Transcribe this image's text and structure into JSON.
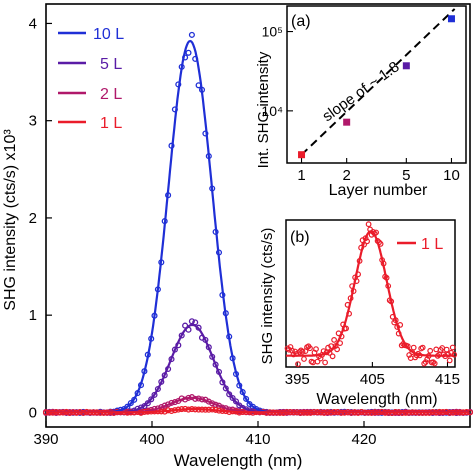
{
  "chart_data": [
    {
      "id": "main",
      "type": "line",
      "xlabel": "Wavelength (nm)",
      "ylabel": "SHG intensity (cts/s) x10³",
      "xlim": [
        390,
        430
      ],
      "ylim": [
        -0.15,
        4.2
      ],
      "xticks": [
        390,
        400,
        410,
        420
      ],
      "yticks": [
        0,
        1,
        2,
        3,
        4
      ],
      "legend_position": "top-left",
      "series": [
        {
          "name": "10 L",
          "color": "#1f2fd6",
          "peak": 3.82,
          "center": 403.6,
          "sigma": 2.05
        },
        {
          "name": "5 L",
          "color": "#5a1ca6",
          "peak": 0.9,
          "center": 403.8,
          "sigma": 2.0
        },
        {
          "name": "2 L",
          "color": "#b0186a",
          "peak": 0.15,
          "center": 403.8,
          "sigma": 2.0
        },
        {
          "name": "1 L",
          "color": "#ea1c2a",
          "peak": 0.035,
          "center": 404.0,
          "sigma": 2.0
        }
      ]
    },
    {
      "id": "inset_a",
      "type": "scatter",
      "panel_label": "(a)",
      "annotation": "slope of ~ 1.8",
      "xlabel": "Layer number",
      "ylabel": "Int. SHG intensity",
      "xscale": "log",
      "yscale": "log",
      "xticks": [
        1,
        2,
        5,
        10
      ],
      "ytick_labels": [
        "10⁴",
        "10⁵"
      ],
      "points": [
        {
          "x": 1,
          "y": 2800,
          "color": "#ea1c2a"
        },
        {
          "x": 2,
          "y": 7200,
          "color": "#b0186a"
        },
        {
          "x": 5,
          "y": 37000,
          "color": "#5a1ca6"
        },
        {
          "x": 10,
          "y": 145000,
          "color": "#1f2fd6"
        }
      ],
      "fit_line": "dashed"
    },
    {
      "id": "inset_b",
      "type": "line",
      "panel_label": "(b)",
      "legend": "1 L",
      "xlabel": "Wavelength (nm)",
      "ylabel": "SHG intensity (cts/s)",
      "xticks": [
        395,
        405,
        415
      ],
      "xlim": [
        393.5,
        416
      ],
      "series": [
        {
          "name": "1 L",
          "color": "#ea1c2a",
          "peak": 33,
          "center": 404.8,
          "sigma": 2.1,
          "baseline": 2
        }
      ]
    }
  ]
}
